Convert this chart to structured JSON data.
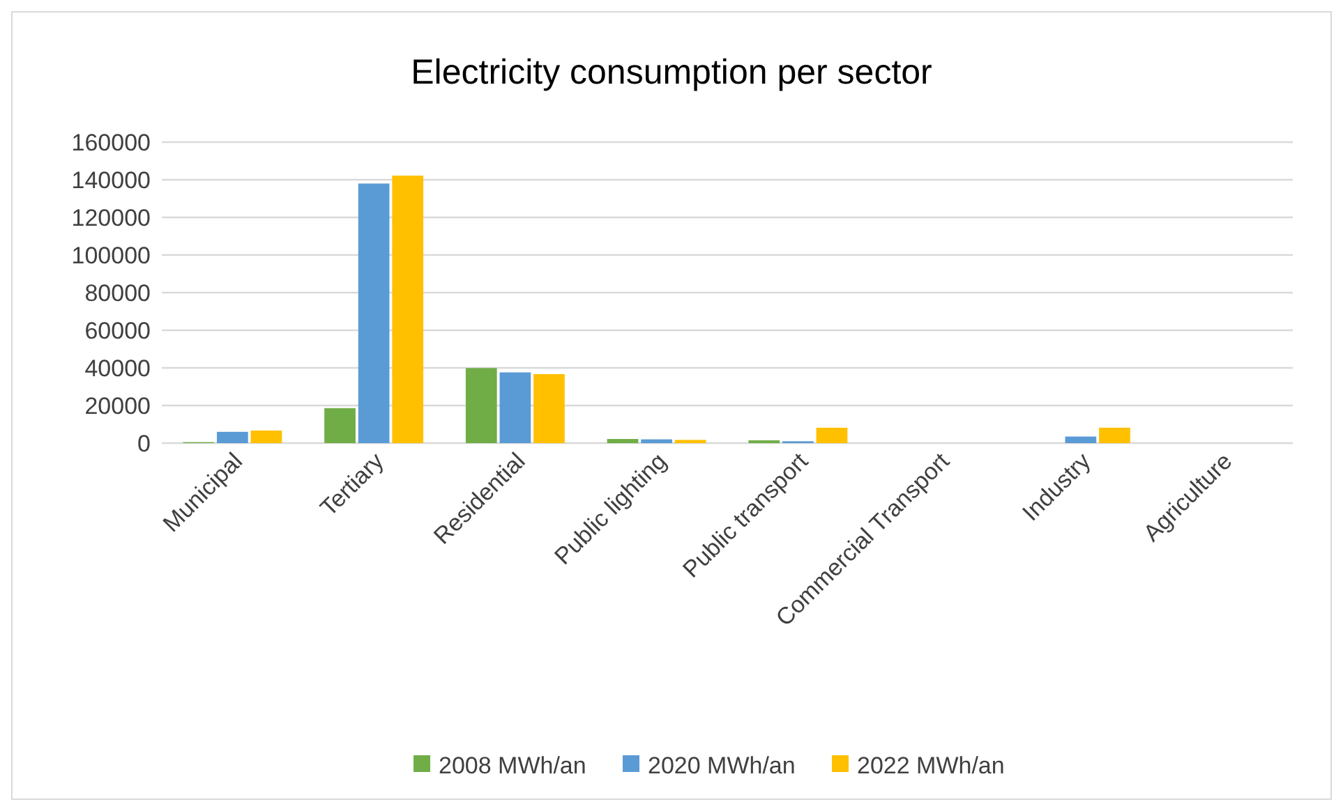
{
  "chart_data": {
    "type": "bar",
    "title": "Electricity consumption per sector",
    "categories": [
      "Municipal",
      "Tertiary",
      "Residential",
      "Public lighting",
      "Public transport",
      "Commercial Transport",
      "Industry",
      "Agriculture"
    ],
    "series": [
      {
        "name": "2008 MWh/an",
        "color": "#70ad47",
        "values": [
          500,
          18600,
          39900,
          2200,
          1500,
          0,
          0,
          0
        ]
      },
      {
        "name": "2020 MWh/an",
        "color": "#5b9bd5",
        "values": [
          6000,
          138000,
          37600,
          2000,
          1000,
          0,
          3500,
          0
        ]
      },
      {
        "name": "2022 MWh/an",
        "color": "#ffc000",
        "values": [
          6700,
          142200,
          36700,
          1700,
          8200,
          0,
          8200,
          0
        ]
      }
    ],
    "ylim": [
      0,
      160000
    ],
    "yticks": [
      0,
      20000,
      40000,
      60000,
      80000,
      100000,
      120000,
      140000,
      160000
    ],
    "grid": "y",
    "legend": "bottom"
  }
}
